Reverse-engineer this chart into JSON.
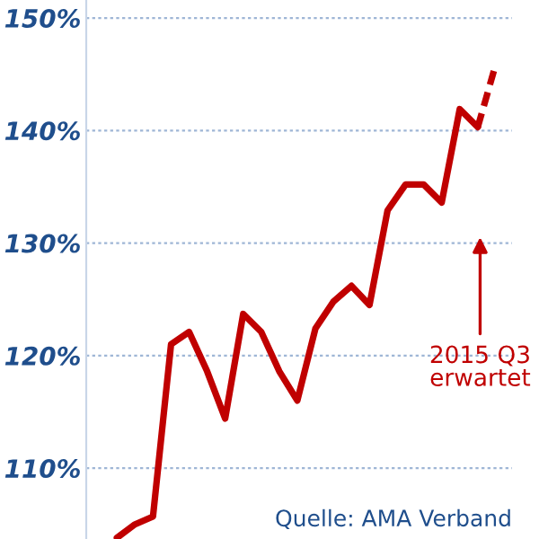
{
  "chart_data": {
    "type": "line",
    "categories": [
      null,
      null,
      null,
      null,
      null,
      null,
      null,
      null,
      null,
      null,
      null,
      null,
      null,
      null,
      null,
      null,
      null,
      null,
      null,
      null,
      null,
      null
    ],
    "series": [
      {
        "color": "#c00000",
        "line_style": "solid",
        "values": [
          103.8,
          105.0,
          105.7,
          121.0,
          122.1,
          118.6,
          114.4,
          123.7,
          122.1,
          118.6,
          116.0,
          122.4,
          124.8,
          126.2,
          124.5,
          132.9,
          135.2,
          135.2,
          133.6,
          141.9,
          140.3,
          null
        ]
      },
      {
        "color": "#c00000",
        "line_style": "dashed",
        "values": [
          null,
          null,
          null,
          null,
          null,
          null,
          null,
          null,
          null,
          null,
          null,
          null,
          null,
          null,
          null,
          null,
          null,
          null,
          null,
          null,
          140.3,
          145.9
        ]
      }
    ],
    "ylim": [
      103.7,
      151.6
    ],
    "yticks": [
      {
        "value": 110,
        "label": "110%"
      },
      {
        "value": 120,
        "label": "120%"
      },
      {
        "value": 130,
        "label": "130%"
      },
      {
        "value": 140,
        "label": "140%"
      },
      {
        "value": 150,
        "label": "150%"
      }
    ],
    "grid": "y",
    "marker": "none",
    "tick_labels": "y",
    "annotations": [
      "2015 Q3\nerwartet",
      "Quelle: AMA Verband"
    ]
  }
}
